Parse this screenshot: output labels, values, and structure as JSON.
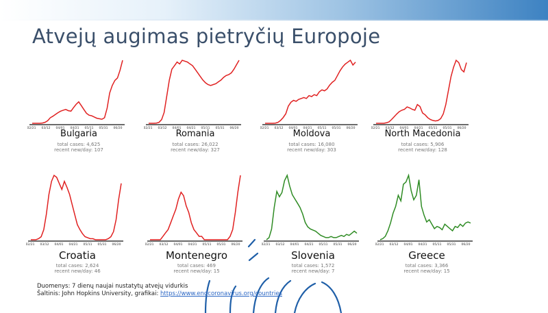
{
  "title": "Atvejų augimas pietryčių Europoje",
  "footer": {
    "line1": "Duomenys: 7 dienų naujai nustatytų atvejų vidurkis",
    "line2_prefix": "Šaltinis: John Hopkins University, grafikai: ",
    "link_text": "https://www.endcoronavirus.org/countries"
  },
  "stat_labels": {
    "total": "total cases:",
    "recent": "recent new/day:"
  },
  "chart_data": [
    {
      "type": "line",
      "name": "Bulgaria",
      "color": "#e02020",
      "total_cases": "4,625",
      "recent_per_day": "107",
      "x_ticks": [
        "02/21",
        "03/12",
        "04/01",
        "04/21",
        "05/11",
        "05/31",
        "06/20"
      ],
      "values": [
        0,
        0,
        0,
        0,
        1,
        4,
        10,
        22,
        28,
        35,
        42,
        48,
        52,
        55,
        50,
        48,
        62,
        75,
        85,
        70,
        55,
        40,
        32,
        30,
        25,
        20,
        18,
        16,
        22,
        60,
        120,
        150,
        170,
        180,
        210,
        250
      ]
    },
    {
      "type": "line",
      "name": "Romania",
      "color": "#e02020",
      "total_cases": "26,022",
      "recent_per_day": "327",
      "x_ticks": [
        "02/21",
        "03/12",
        "04/01",
        "04/21",
        "05/11",
        "05/31",
        "06/20"
      ],
      "values": [
        0,
        0,
        0,
        1,
        5,
        20,
        60,
        150,
        240,
        300,
        320,
        340,
        330,
        350,
        345,
        340,
        330,
        320,
        300,
        280,
        260,
        240,
        225,
        215,
        210,
        215,
        220,
        230,
        240,
        255,
        265,
        270,
        280,
        300,
        325,
        350
      ]
    },
    {
      "type": "line",
      "name": "Moldova",
      "color": "#e02020",
      "total_cases": "16,080",
      "recent_per_day": "303",
      "x_ticks": [
        "02/21",
        "03/12",
        "04/01",
        "04/21",
        "05/11",
        "05/31",
        "06/20"
      ],
      "values": [
        0,
        0,
        0,
        0,
        1,
        5,
        15,
        30,
        50,
        90,
        110,
        120,
        115,
        125,
        130,
        135,
        130,
        145,
        140,
        150,
        145,
        165,
        175,
        170,
        180,
        200,
        215,
        225,
        250,
        275,
        295,
        310,
        320,
        330,
        305,
        320
      ]
    },
    {
      "type": "line",
      "name": "North Macedonia",
      "color": "#e02020",
      "total_cases": "5,906",
      "recent_per_day": "128",
      "x_ticks": [
        "02/21",
        "03/12",
        "04/01",
        "04/21",
        "05/11",
        "05/31",
        "06/20"
      ],
      "values": [
        0,
        0,
        0,
        0,
        1,
        3,
        8,
        14,
        20,
        25,
        28,
        30,
        35,
        33,
        30,
        28,
        40,
        36,
        22,
        18,
        12,
        8,
        6,
        5,
        6,
        10,
        20,
        40,
        70,
        100,
        120,
        135,
        130,
        115,
        110,
        130
      ]
    },
    {
      "type": "line",
      "name": "Croatia",
      "color": "#e02020",
      "total_cases": "2,624",
      "recent_per_day": "46",
      "x_ticks": [
        "02/21",
        "03/12",
        "04/01",
        "04/21",
        "05/11",
        "05/31",
        "06/20"
      ],
      "values": [
        0,
        0,
        0,
        1,
        3,
        10,
        25,
        45,
        58,
        64,
        62,
        56,
        50,
        58,
        52,
        45,
        35,
        25,
        15,
        10,
        6,
        3,
        2,
        1,
        1,
        0,
        0,
        0,
        0,
        0,
        1,
        3,
        8,
        20,
        40,
        56
      ]
    },
    {
      "type": "line",
      "name": "Montenegro",
      "color": "#e02020",
      "total_cases": "469",
      "recent_per_day": "15",
      "x_ticks": [
        "02/21",
        "03/12",
        "04/01",
        "04/21",
        "05/11",
        "05/31",
        "06/20"
      ],
      "values": [
        0,
        0,
        0,
        0,
        0,
        1,
        2,
        3,
        5,
        7,
        9,
        12,
        14,
        13,
        10,
        8,
        5,
        3,
        2,
        1,
        1,
        0,
        0,
        0,
        0,
        0,
        0,
        0,
        0,
        0,
        0,
        1,
        3,
        8,
        14,
        19
      ]
    },
    {
      "type": "line",
      "name": "Slovenia",
      "color": "#2e8b23",
      "total_cases": "1,572",
      "recent_per_day": "7",
      "x_ticks": [
        "02/21",
        "03/12",
        "04/01",
        "04/21",
        "05/11",
        "05/31",
        "06/20"
      ],
      "values": [
        0,
        2,
        10,
        30,
        45,
        40,
        44,
        55,
        60,
        50,
        42,
        38,
        34,
        30,
        24,
        16,
        12,
        10,
        9,
        8,
        6,
        4,
        3,
        2,
        2,
        3,
        2,
        2,
        3,
        4,
        3,
        5,
        4,
        6,
        8,
        6
      ]
    },
    {
      "type": "line",
      "name": "Greece",
      "color": "#2e8b23",
      "total_cases": "3,366",
      "recent_per_day": "15",
      "x_ticks": [
        "02/21",
        "03/12",
        "04/01",
        "04/21",
        "05/11",
        "05/31",
        "06/20"
      ],
      "values": [
        0,
        1,
        3,
        8,
        15,
        24,
        30,
        40,
        35,
        50,
        52,
        58,
        44,
        36,
        40,
        54,
        30,
        22,
        16,
        18,
        14,
        10,
        12,
        11,
        9,
        14,
        12,
        10,
        8,
        12,
        11,
        14,
        12,
        15,
        16,
        15
      ]
    }
  ]
}
